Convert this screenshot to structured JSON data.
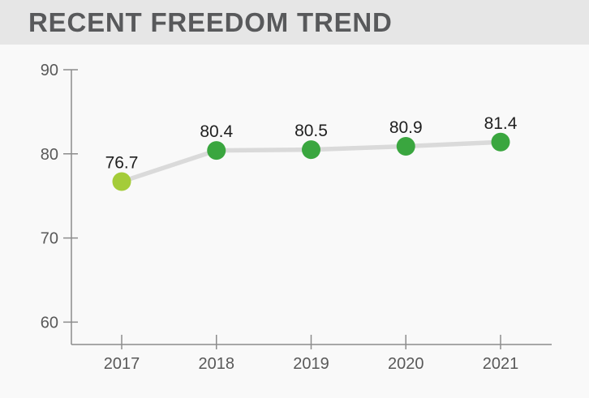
{
  "header": {
    "title": "RECENT FREEDOM TREND"
  },
  "colors": {
    "header_band": "#e6e6e6",
    "page_background": "#f9f9f9",
    "title_text": "#58595b",
    "axis": "#8c8c8c",
    "tick_label": "#595959",
    "trend_line": "#dadada",
    "point_label": "#1f1f1f",
    "point_first": "#a4cc39",
    "point_rest": "#3aa63f"
  },
  "chart_data": {
    "type": "line",
    "title": "RECENT FREEDOM TREND",
    "categories": [
      "2017",
      "2018",
      "2019",
      "2020",
      "2021"
    ],
    "values": [
      76.7,
      80.4,
      80.5,
      80.9,
      81.4
    ],
    "point_labels": [
      "76.7",
      "80.4",
      "80.5",
      "80.9",
      "81.4"
    ],
    "point_colors": [
      "#a4cc39",
      "#3aa63f",
      "#3aa63f",
      "#3aa63f",
      "#3aa63f"
    ],
    "y_ticks": [
      90,
      80,
      70,
      60
    ],
    "ylim": [
      60,
      90
    ],
    "xlabel": "",
    "ylabel": "",
    "grid": false,
    "legend": "none",
    "data_labels": "above-points"
  }
}
